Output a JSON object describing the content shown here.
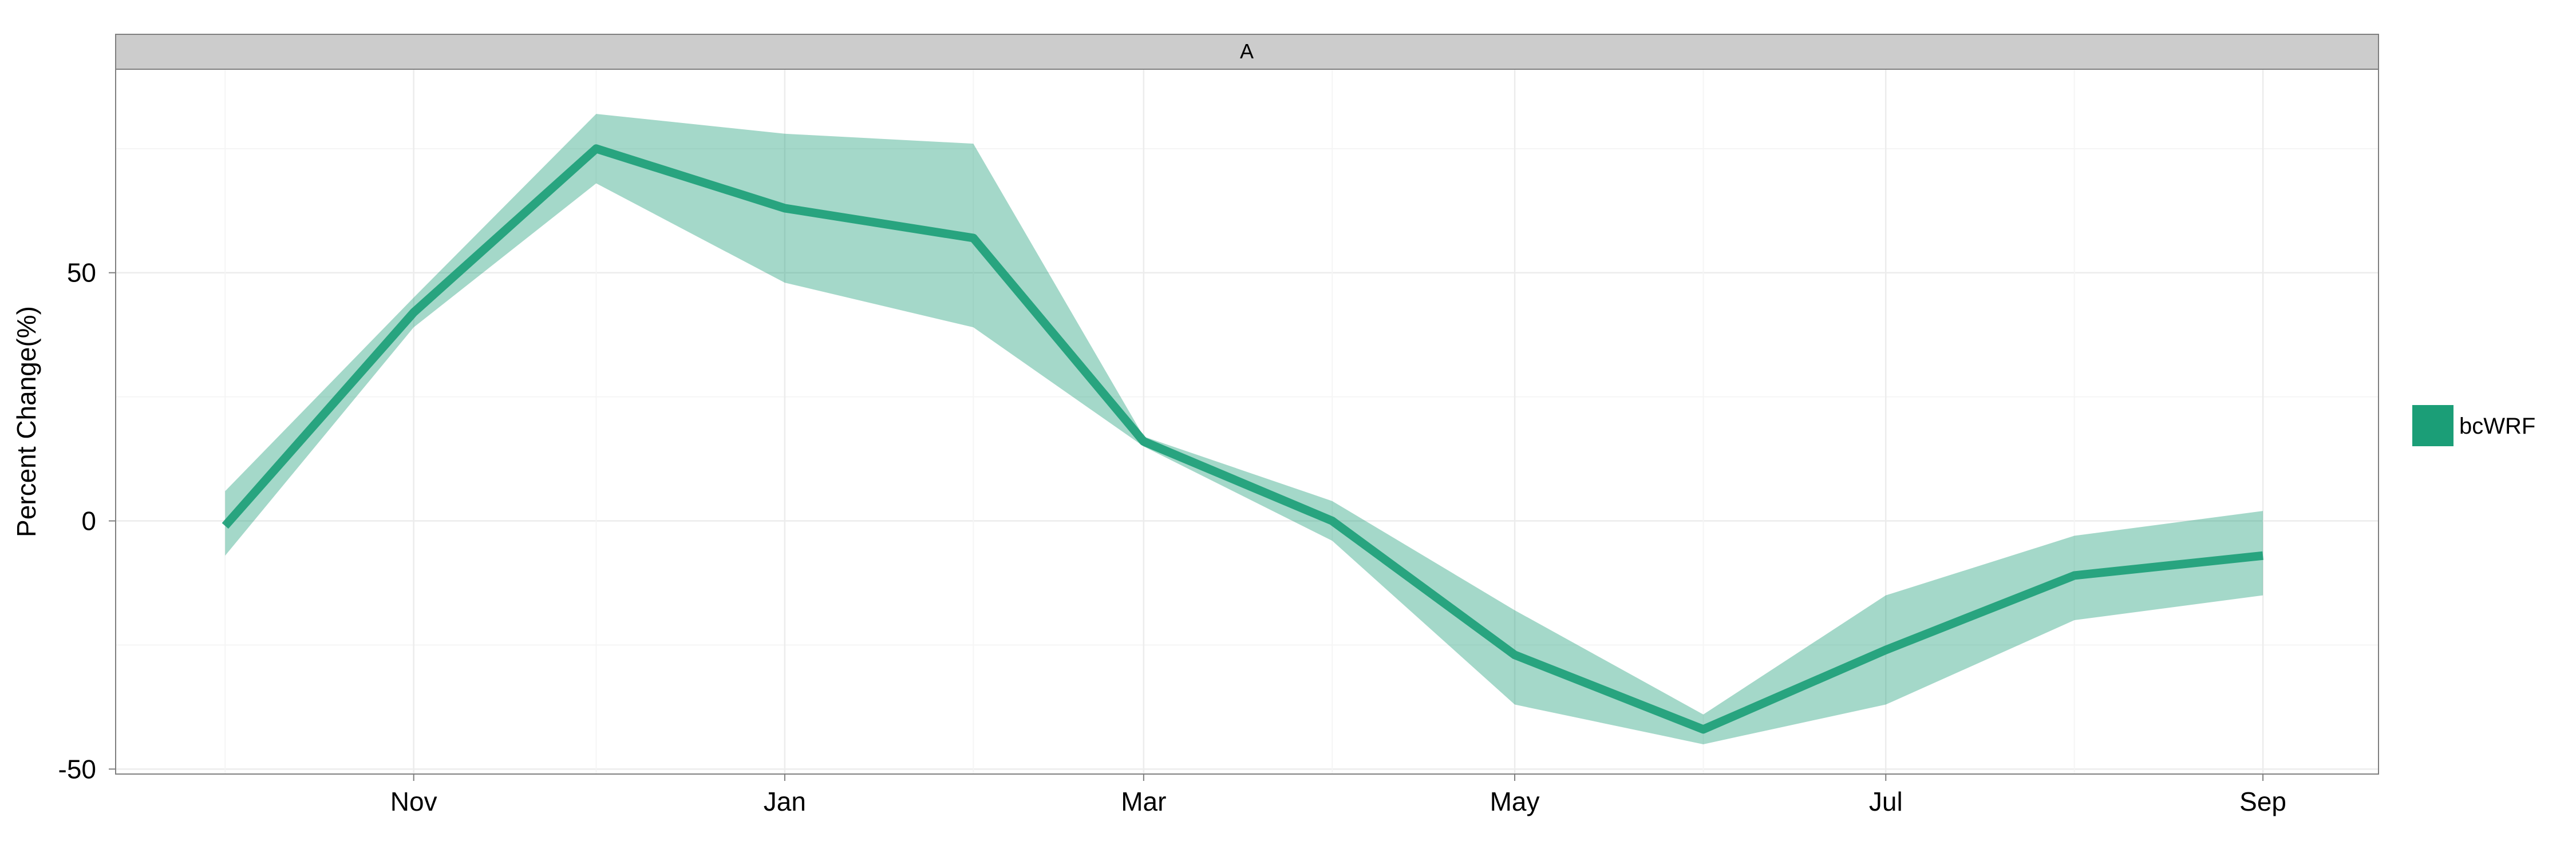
{
  "chart_data": {
    "type": "area",
    "facet_label": "A",
    "xlabel": "",
    "ylabel": "Percent Change(%)",
    "x": [
      "2000-10-01",
      "2000-11-01",
      "2000-12-01",
      "2001-01-01",
      "2001-02-01",
      "2001-03-01",
      "2001-04-01",
      "2001-05-01",
      "2001-06-01",
      "2001-07-01",
      "2001-08-01",
      "2001-09-01"
    ],
    "x_ticks": [
      "2000-11-01",
      "2001-01-01",
      "2001-03-01",
      "2001-05-01",
      "2001-07-01",
      "2001-09-01"
    ],
    "x_tick_labels": [
      "Nov",
      "Jan",
      "Mar",
      "May",
      "Jul",
      "Sep"
    ],
    "xlim": [
      "2000-09-13",
      "2001-09-20"
    ],
    "y_ticks": [
      -50,
      0,
      50
    ],
    "y_tick_labels": [
      "-50",
      "0",
      "50"
    ],
    "ylim": [
      -51,
      91
    ],
    "grid": true,
    "legend_position": "right",
    "series": [
      {
        "name": "bcWRF",
        "color": "#1b9e77",
        "values": [
          -1,
          42,
          75,
          63,
          57,
          16,
          0,
          -27,
          -42,
          -26,
          -11,
          -7
        ],
        "lower": [
          -7,
          39,
          68,
          48,
          39,
          15,
          -4,
          -37,
          -45,
          -37,
          -20,
          -15
        ],
        "upper": [
          6,
          45,
          82,
          78,
          76,
          17,
          4,
          -18,
          -39,
          -15,
          -3,
          2
        ]
      }
    ]
  },
  "legend": {
    "label": "bcWRF",
    "color": "#1b9e77"
  }
}
